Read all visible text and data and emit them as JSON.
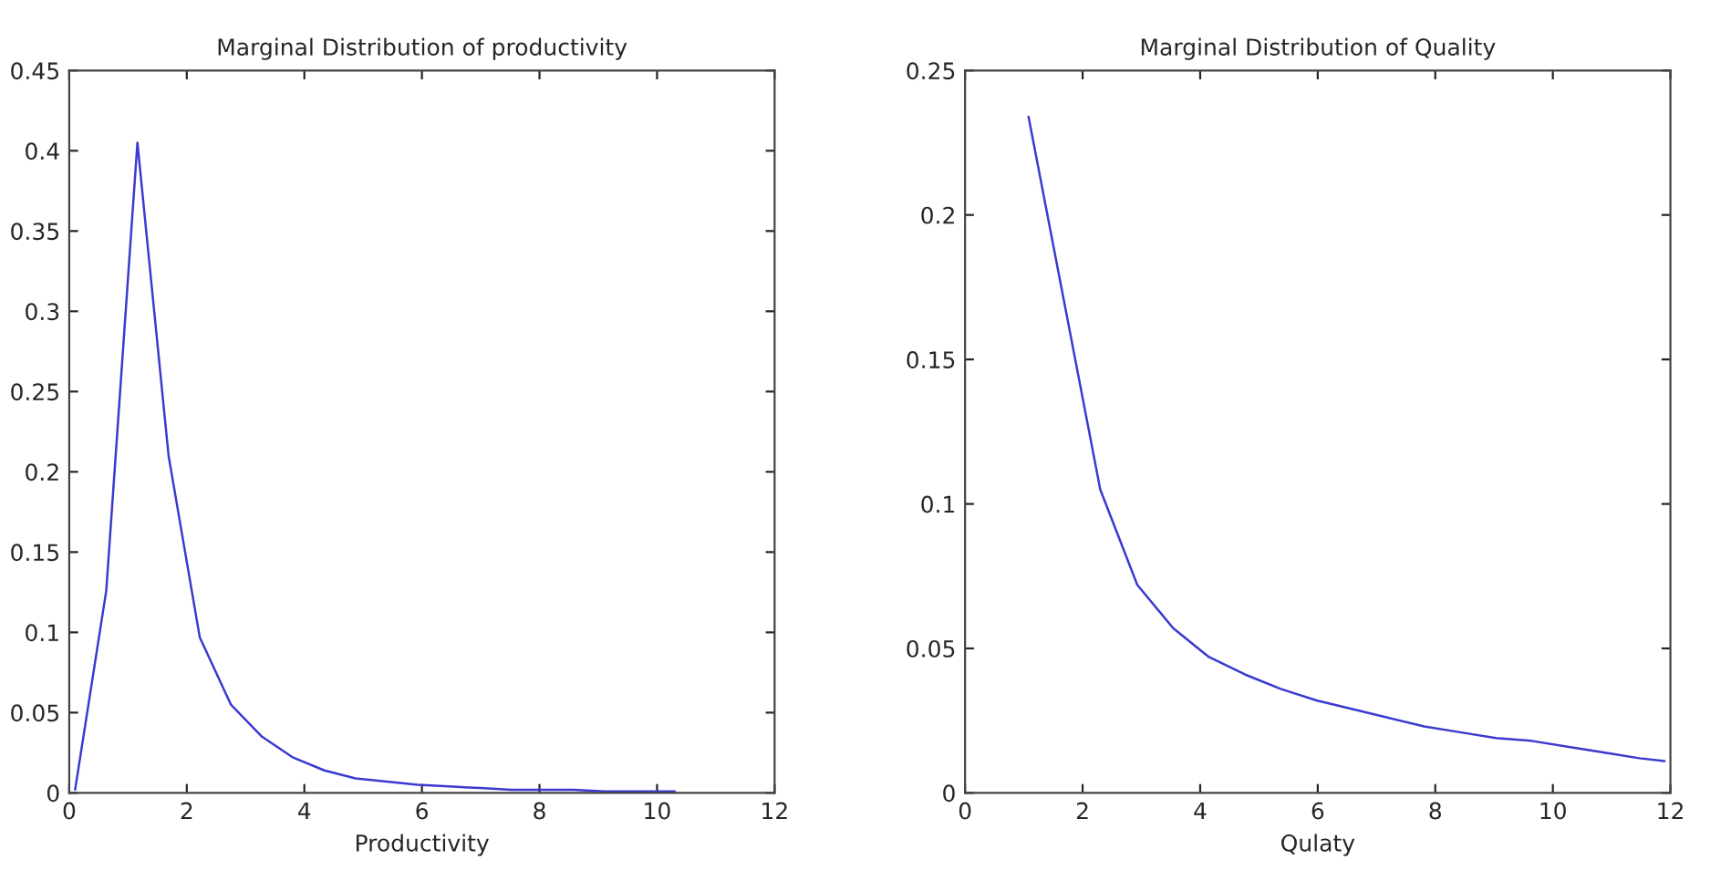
{
  "chart_data": [
    {
      "type": "line",
      "title": "Marginal Distribution of productivity",
      "xlabel": "Productivity",
      "series": [
        {
          "color": "#3a3ad0",
          "x": [
            0.1,
            0.63,
            1.16,
            1.69,
            2.22,
            2.75,
            3.28,
            3.81,
            4.34,
            4.87,
            5.4,
            5.93,
            6.46,
            6.99,
            7.52,
            8.05,
            8.58,
            9.11,
            9.64,
            10.17,
            10.3
          ],
          "values": [
            0.002,
            0.126,
            0.405,
            0.21,
            0.097,
            0.055,
            0.035,
            0.022,
            0.014,
            0.009,
            0.007,
            0.005,
            0.004,
            0.003,
            0.002,
            0.002,
            0.002,
            0.001,
            0.001,
            0.001,
            0.001
          ]
        }
      ],
      "xlim": [
        0,
        12
      ],
      "xticks": [
        0,
        2,
        4,
        6,
        8,
        10,
        12
      ],
      "ylim": [
        0,
        0.45
      ],
      "yticks": [
        0,
        0.05,
        0.1,
        0.15,
        0.2,
        0.25,
        0.3,
        0.35,
        0.4,
        0.45
      ],
      "grid": false
    },
    {
      "type": "line",
      "title": "Marginal Distribution of Quality",
      "xlabel": "Qulaty",
      "series": [
        {
          "color": "#3a3ad0",
          "x": [
            1.08,
            2.3,
            2.93,
            3.54,
            4.15,
            4.76,
            5.37,
            5.98,
            6.59,
            7.2,
            7.81,
            8.42,
            9.03,
            9.64,
            10.25,
            10.86,
            11.47,
            11.9
          ],
          "values": [
            0.234,
            0.105,
            0.072,
            0.057,
            0.047,
            0.041,
            0.036,
            0.032,
            0.029,
            0.026,
            0.023,
            0.021,
            0.019,
            0.018,
            0.016,
            0.014,
            0.012,
            0.011
          ]
        }
      ],
      "xlim": [
        0,
        12
      ],
      "xticks": [
        0,
        2,
        4,
        6,
        8,
        10,
        12
      ],
      "ylim": [
        0,
        0.25
      ],
      "yticks": [
        0,
        0.05,
        0.1,
        0.15,
        0.2,
        0.25
      ],
      "grid": false
    }
  ]
}
